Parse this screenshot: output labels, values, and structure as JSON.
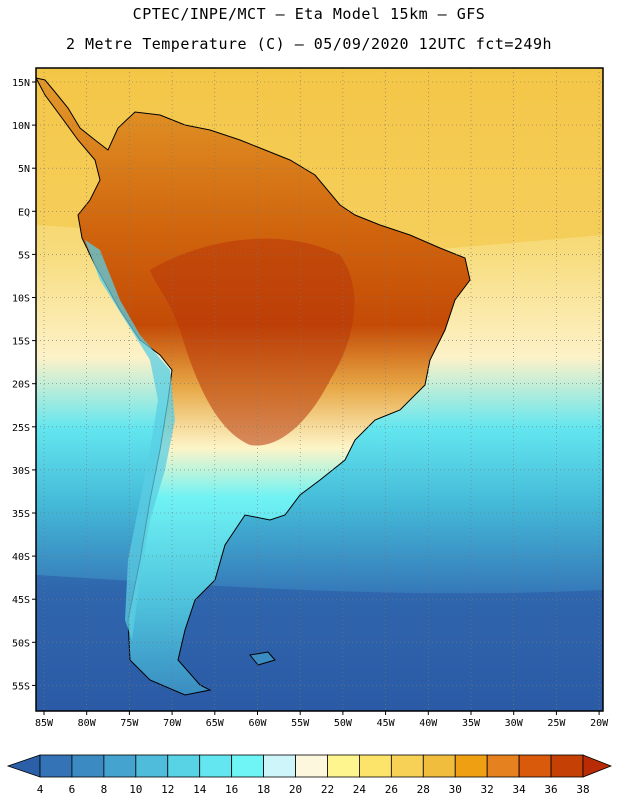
{
  "title_line1": "CPTEC/INPE/MCT —  Eta Model 15km — GFS",
  "title_line2": "2 Metre Temperature (C) — 05/09/2020 12UTC fct=249h",
  "map": {
    "region": "South America",
    "lat_labels": [
      "15N",
      "10N",
      "5N",
      "EQ",
      "5S",
      "10S",
      "15S",
      "20S",
      "25S",
      "30S",
      "35S",
      "40S",
      "45S",
      "50S",
      "55S"
    ],
    "lon_labels": [
      "85W",
      "80W",
      "75W",
      "70W",
      "65W",
      "60W",
      "55W",
      "50W",
      "45W",
      "40W",
      "35W",
      "30W",
      "25W",
      "20W"
    ],
    "grid": "dotted"
  },
  "colorbar": {
    "labels": [
      "4",
      "6",
      "8",
      "10",
      "12",
      "14",
      "16",
      "18",
      "20",
      "22",
      "24",
      "26",
      "28",
      "30",
      "32",
      "34",
      "36",
      "38"
    ],
    "colors": [
      "#2b5fa8",
      "#3473b6",
      "#3b8bc2",
      "#44a3cf",
      "#4fbcdb",
      "#58d3e6",
      "#63e6ef",
      "#6ff5f6",
      "#cef5fa",
      "#fdf8dd",
      "#fff58e",
      "#fce36a",
      "#f7d056",
      "#f1bd3d",
      "#ef9f12",
      "#e5811f",
      "#d85a0a",
      "#c44004",
      "#b82b04"
    ]
  }
}
